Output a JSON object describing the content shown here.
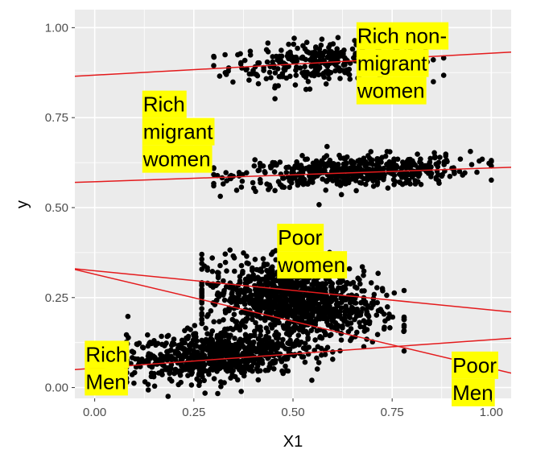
{
  "chart_data": {
    "type": "scatter",
    "title": "",
    "xlabel": "X1",
    "ylabel": "y",
    "xlim": [
      -0.05,
      1.05
    ],
    "ylim": [
      -0.03,
      1.05
    ],
    "x_ticks": [
      0.0,
      0.25,
      0.5,
      0.75,
      1.0
    ],
    "x_tick_labels": [
      "0.00",
      "0.25",
      "0.50",
      "0.75",
      "1.00"
    ],
    "y_ticks": [
      0.0,
      0.25,
      0.5,
      0.75,
      1.0
    ],
    "y_tick_labels": [
      "0.00",
      "0.25",
      "0.50",
      "0.75",
      "1.00"
    ],
    "grid": true,
    "panel_background": "#ebebeb",
    "point_color": "#000000",
    "line_color": "#e41a1c",
    "label_background": "#ffff00",
    "series": [
      {
        "cluster": {
          "x_range": [
            0.3,
            0.88
          ],
          "x_center": 0.58,
          "y_center": 0.905,
          "y_spread": 0.028,
          "count": 320
        },
        "fit_line": {
          "x": [
            -0.05,
            1.05
          ],
          "y": [
            0.865,
            0.932
          ]
        }
      },
      {
        "cluster": {
          "x_range": [
            0.3,
            1.0
          ],
          "x_center": 0.65,
          "y_center": 0.6,
          "y_spread": 0.022,
          "count": 520
        },
        "fit_line": {
          "x": [
            -0.05,
            1.05
          ],
          "y": [
            0.57,
            0.612
          ]
        }
      },
      {
        "cluster": {
          "x_range": [
            0.27,
            0.78
          ],
          "x_center": 0.5,
          "y_center": 0.24,
          "y_spread": 0.05,
          "count": 1100
        },
        "fit_line": {
          "x": [
            -0.05,
            1.05
          ],
          "y": [
            0.33,
            0.21
          ]
        }
      },
      {
        "cluster": {
          "x_range": [
            0.08,
            0.6
          ],
          "x_center": 0.3,
          "y_center": 0.09,
          "y_spread": 0.035,
          "count": 700
        },
        "fit_line": {
          "x": [
            -0.05,
            1.05
          ],
          "y": [
            0.05,
            0.137
          ]
        }
      },
      {
        "fit_line": {
          "x": [
            -0.05,
            1.05
          ],
          "y": [
            0.328,
            0.04
          ]
        }
      }
    ],
    "annotations": [
      {
        "lines": [
          "Rich non-",
          "migrant",
          "women"
        ],
        "x": 0.66,
        "y": 1.015
      },
      {
        "lines": [
          "Rich",
          "migrant",
          "women"
        ],
        "x": 0.12,
        "y": 0.825
      },
      {
        "lines": [
          "Poor",
          "women"
        ],
        "x": 0.46,
        "y": 0.455
      },
      {
        "lines": [
          "Rich",
          "Men"
        ],
        "x": -0.025,
        "y": 0.13
      },
      {
        "lines": [
          "Poor",
          "Men"
        ],
        "x": 0.9,
        "y": 0.1
      }
    ]
  }
}
